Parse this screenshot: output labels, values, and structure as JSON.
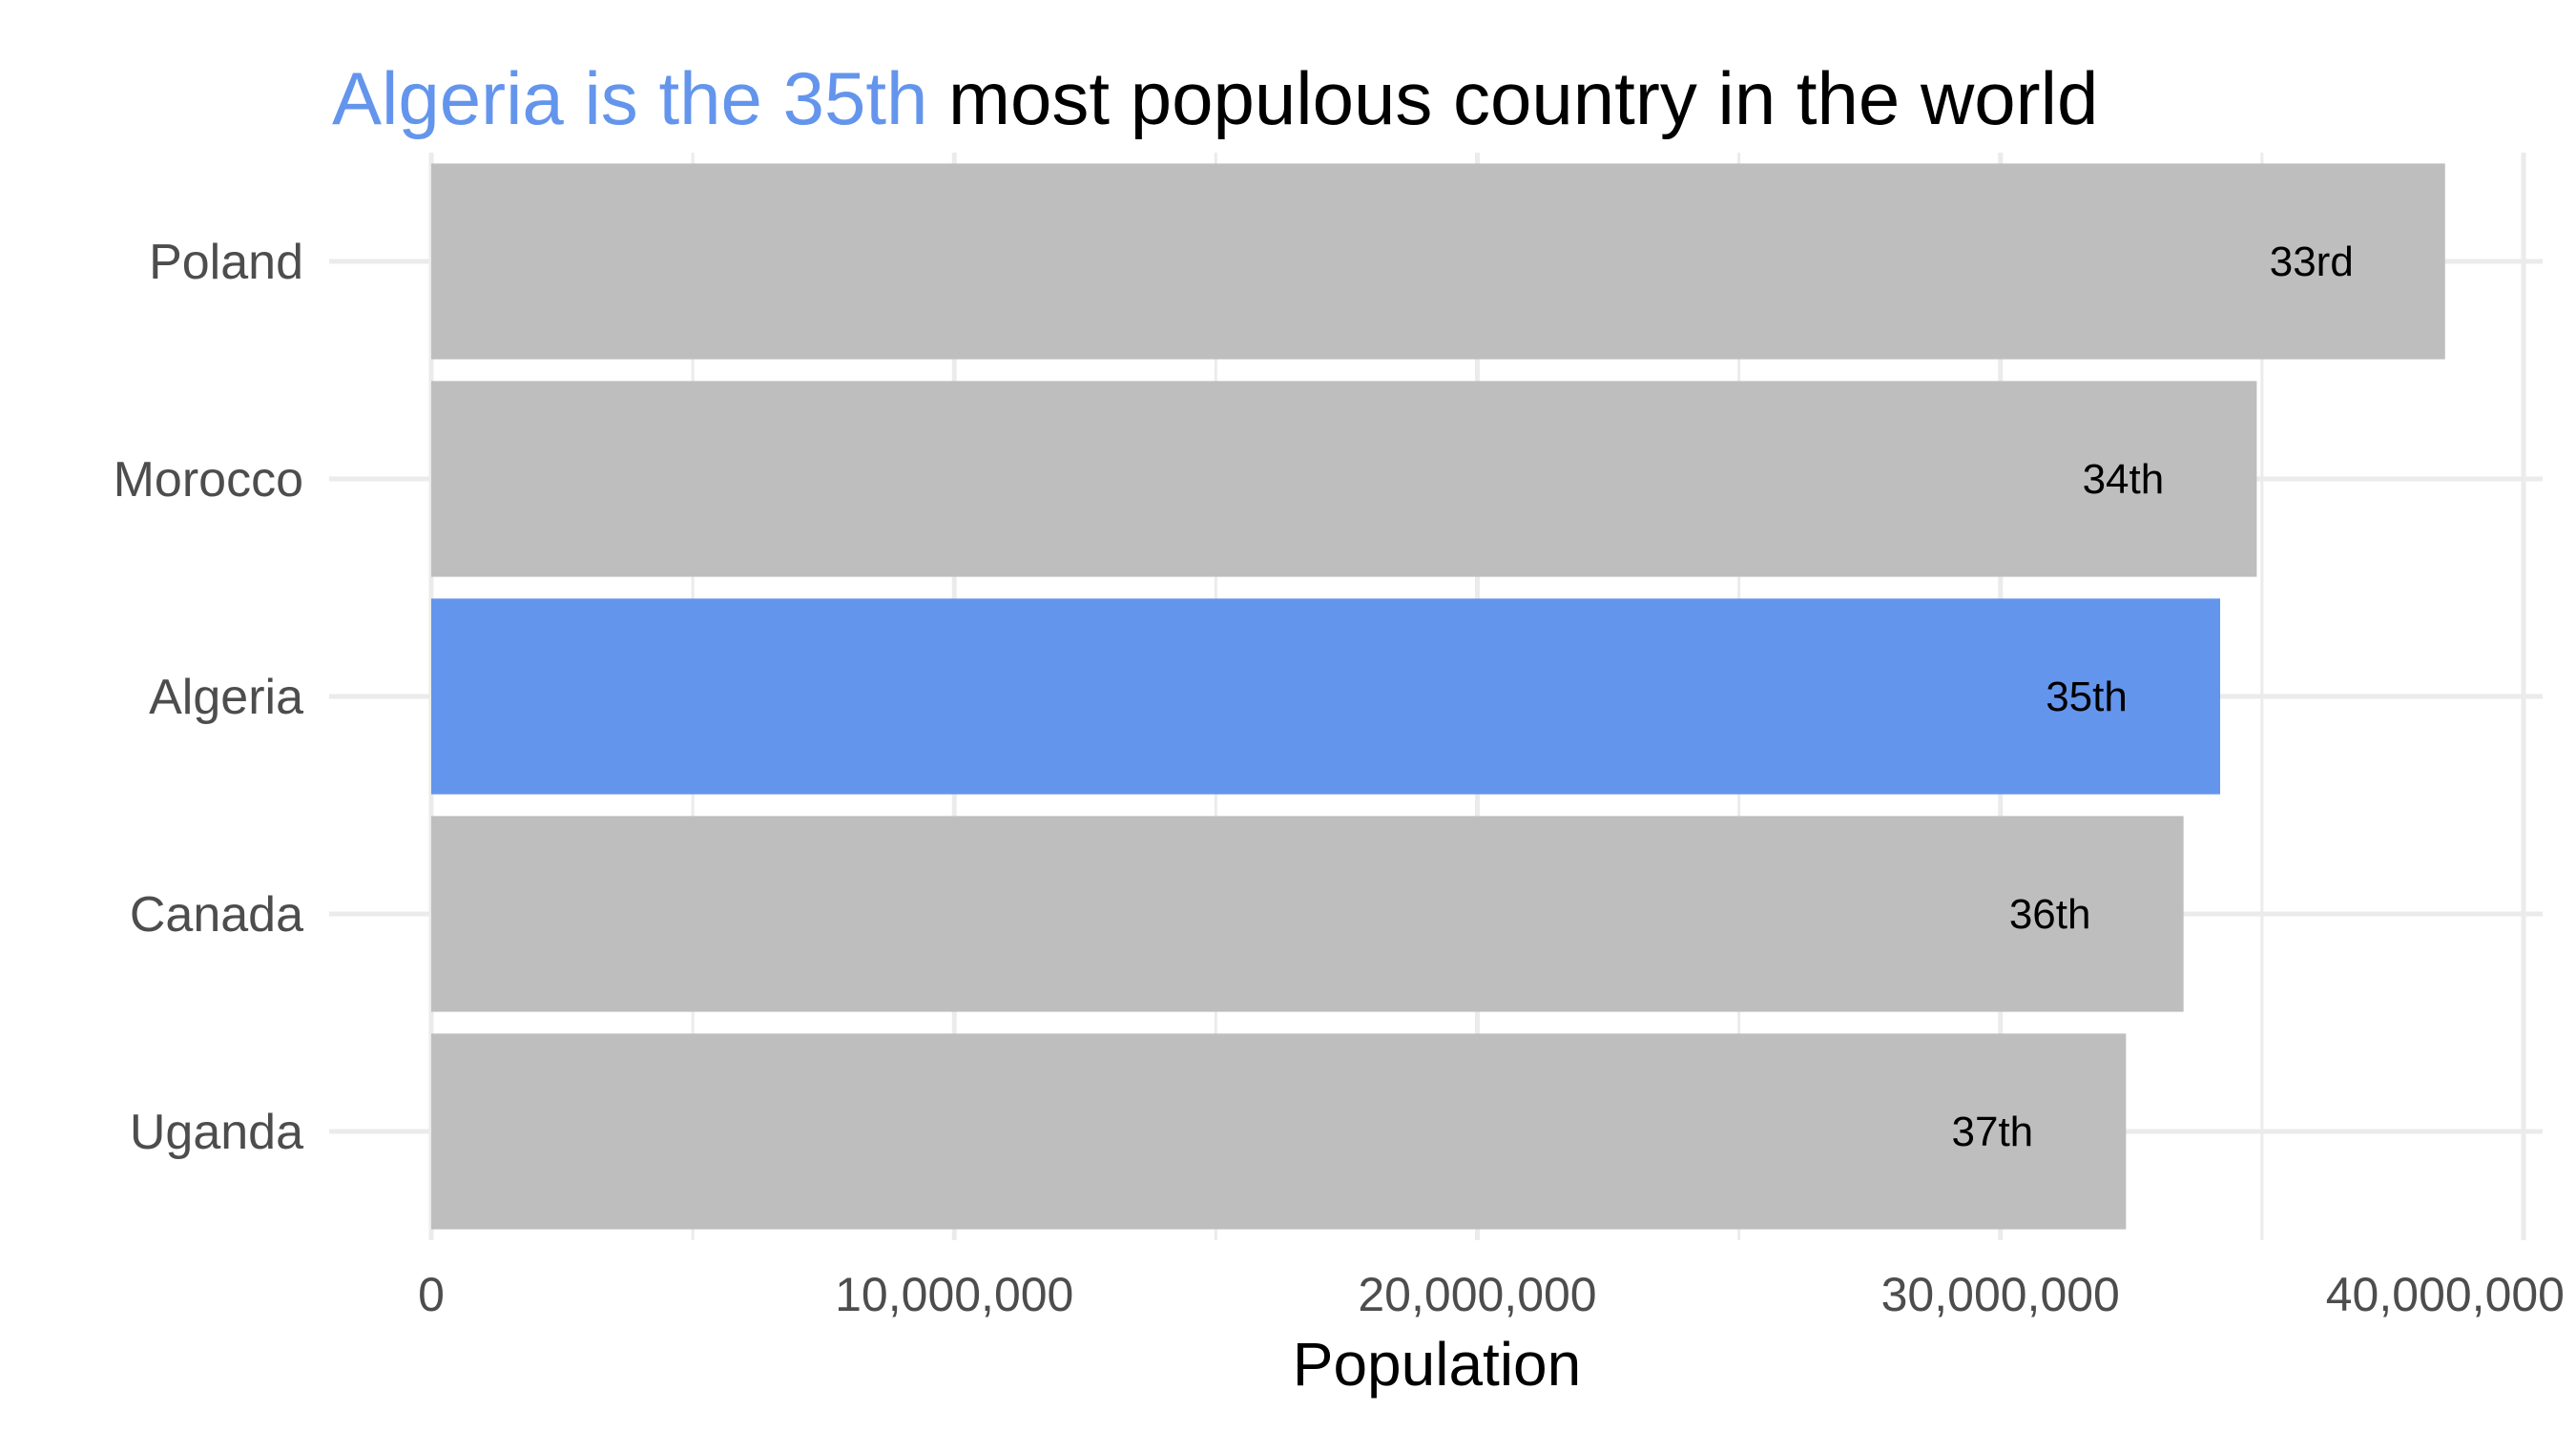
{
  "title": {
    "highlight": "Algeria is the 35th",
    "rest": " most populous country in the world"
  },
  "colors": {
    "highlight": "#6495ED",
    "bar": "#BEBEBE",
    "grid": "#EBEBEB",
    "title_rest": "#000000"
  },
  "chart_data": {
    "type": "bar",
    "orientation": "horizontal",
    "categories": [
      "Poland",
      "Morocco",
      "Algeria",
      "Canada",
      "Uganda"
    ],
    "values": [
      38500000,
      34900000,
      34200000,
      33500000,
      32400000
    ],
    "data_labels": [
      "33rd",
      "34th",
      "35th",
      "36th",
      "37th"
    ],
    "highlighted_category": "Algeria",
    "xlabel": "Population",
    "ylabel": "",
    "xlim": [
      0,
      40000000
    ],
    "x_ticks": [
      0,
      10000000,
      20000000,
      30000000,
      40000000
    ],
    "x_tick_labels": [
      "0",
      "10,000,000",
      "20,000,000",
      "30,000,000",
      "40,000,000"
    ],
    "grid": true,
    "legend": "none"
  }
}
